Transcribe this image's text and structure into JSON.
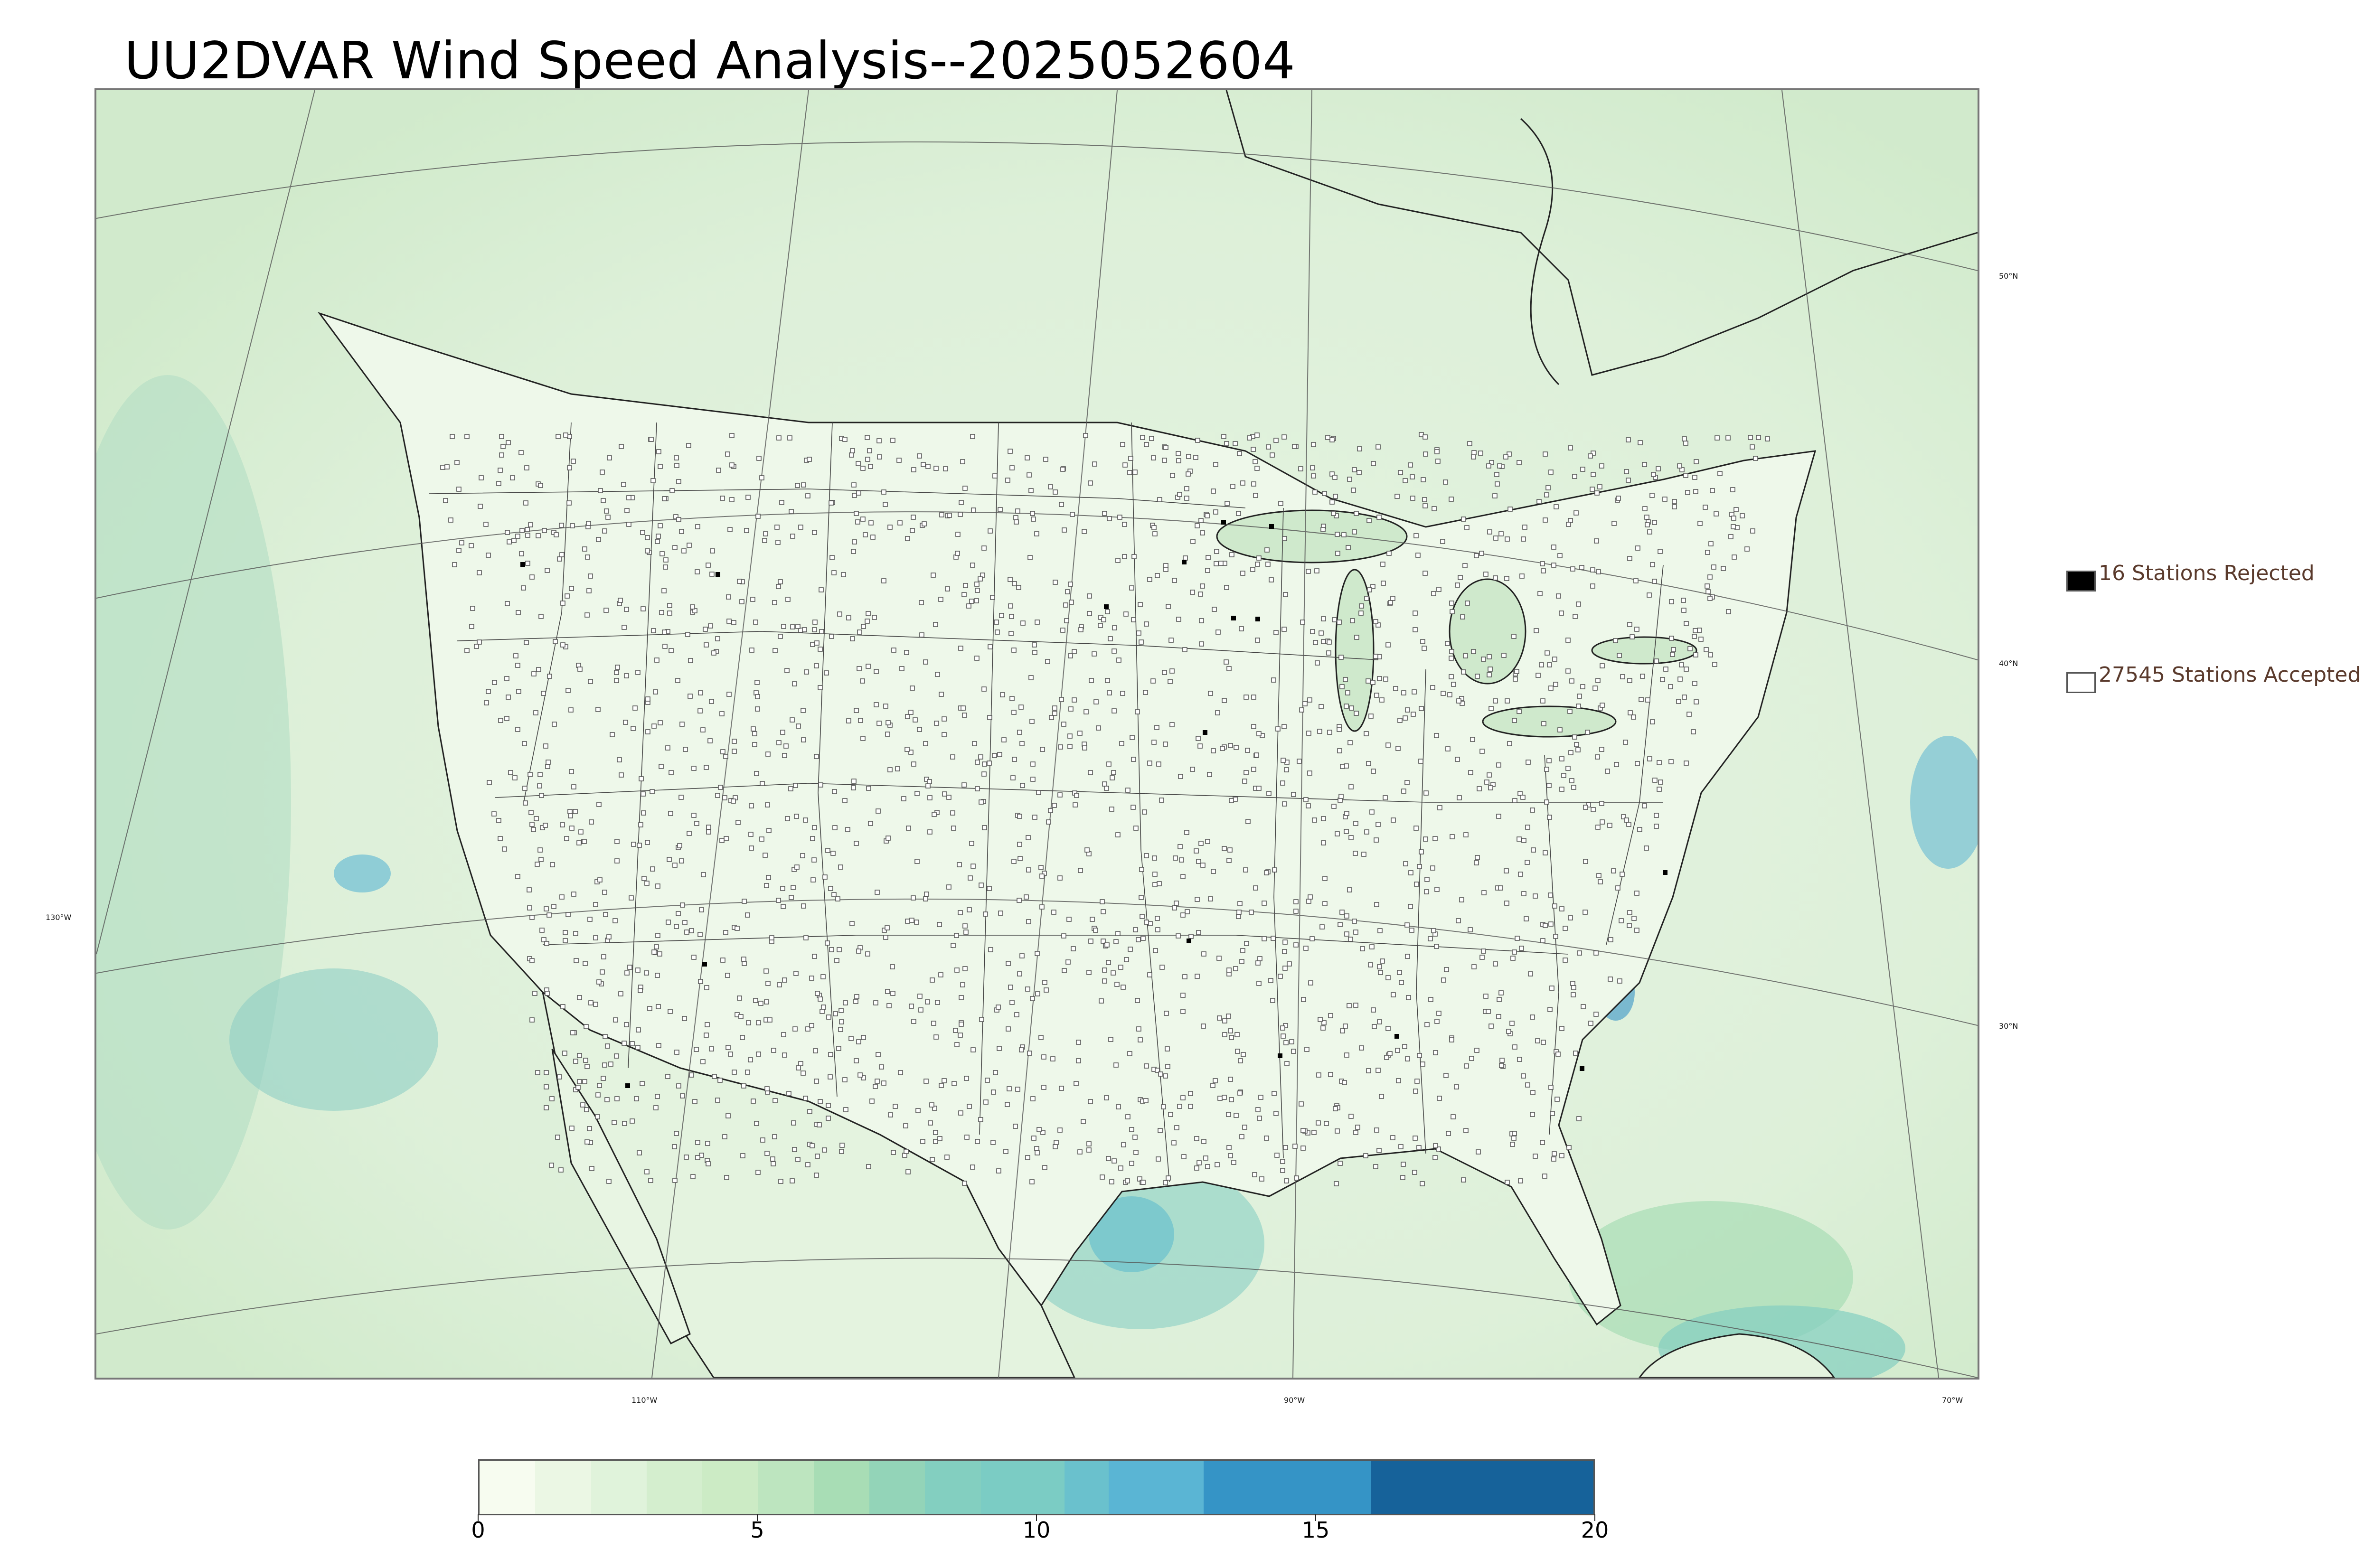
{
  "title": "UU2DVAR Wind Speed Analysis--2025052604",
  "map": {
    "lon_labels": [
      "130°W",
      "110°W",
      "90°W",
      "70°W"
    ],
    "lat_labels": [
      "50°N",
      "40°N",
      "30°N"
    ],
    "colors": {
      "land_light": "#eaf6e6",
      "land_mid": "#cfe9cc",
      "ocean": "#b7e0c4",
      "windy": "#5bb6d2",
      "strong": "#2f90c3",
      "border": "#222222",
      "accepted_marker": "#555555"
    }
  },
  "legend": {
    "rejected": {
      "text": "16 Stations Rejected",
      "count": 16,
      "color": "#000000"
    },
    "accepted": {
      "text": "27545 Stations Accepted",
      "count": 27545,
      "color": "#ffffff"
    }
  },
  "colorbar": {
    "ticks": [
      "0",
      "5",
      "10",
      "15",
      "20"
    ],
    "min": 0,
    "max": 20,
    "segments": [
      {
        "from": 0,
        "to": 1,
        "color": "#f7fcf0"
      },
      {
        "from": 1,
        "to": 2,
        "color": "#ebf7e4"
      },
      {
        "from": 2,
        "to": 3,
        "color": "#e0f3db"
      },
      {
        "from": 3,
        "to": 4,
        "color": "#d4eece"
      },
      {
        "from": 4,
        "to": 5,
        "color": "#ccebc5"
      },
      {
        "from": 5,
        "to": 6,
        "color": "#bde5bf"
      },
      {
        "from": 6,
        "to": 7,
        "color": "#a8ddb5"
      },
      {
        "from": 7,
        "to": 8,
        "color": "#93d4b8"
      },
      {
        "from": 8,
        "to": 9,
        "color": "#83cfc0"
      },
      {
        "from": 9,
        "to": 10.5,
        "color": "#7bccc4"
      },
      {
        "from": 10.5,
        "to": 11.3,
        "color": "#6ac1cd"
      },
      {
        "from": 11.3,
        "to": 13,
        "color": "#5ab5d4"
      },
      {
        "from": 13,
        "to": 16,
        "color": "#3594c6"
      },
      {
        "from": 16,
        "to": 20,
        "color": "#16629a"
      }
    ]
  }
}
